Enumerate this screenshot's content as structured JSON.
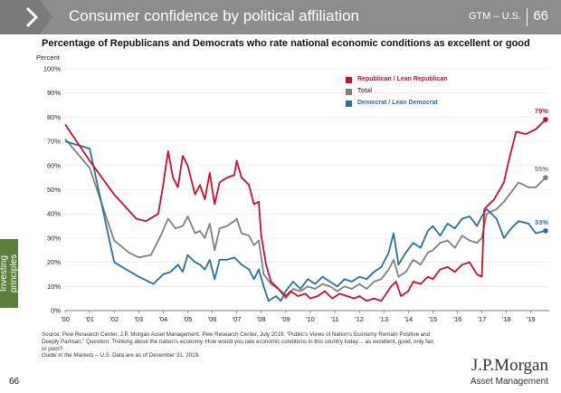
{
  "header": {
    "title": "Consumer confidence by political affiliation",
    "gtm": "GTM – U.S.",
    "page_number": "66",
    "chevron_icon": "chevron-icon"
  },
  "side_tab": {
    "label_line1": "Investing",
    "label_line2": "principles"
  },
  "colors": {
    "republican": "#c8102e",
    "total": "#808080",
    "democrat": "#2a6fa3",
    "header_bg": "#8c8c8c",
    "tab": "#5c7f3c"
  },
  "chart_data": {
    "type": "line",
    "title": "Percentage of Republicans and Democrats who rate national economic conditions as excellent or good",
    "ylabel": "Percent",
    "ylim": [
      0,
      100
    ],
    "xlim": [
      2000,
      2019.75
    ],
    "yticks": [
      "0%",
      "10%",
      "20%",
      "30%",
      "40%",
      "50%",
      "60%",
      "70%",
      "80%",
      "90%",
      "100%"
    ],
    "xticks": [
      "'00",
      "'01",
      "'02",
      "'03",
      "'04",
      "'05",
      "'06",
      "'07",
      "'08",
      "'09",
      "'10",
      "'11",
      "'12",
      "'13",
      "'14",
      "'15",
      "'16",
      "'17",
      "'18",
      "'19"
    ],
    "legend_position": "top-right",
    "series": [
      {
        "name": "Republican / Lean Republican",
        "color": "#c8102e",
        "end_label": "79%",
        "points": [
          [
            2000,
            77
          ],
          [
            2001,
            62
          ],
          [
            2002,
            48
          ],
          [
            2002.9,
            38
          ],
          [
            2003.3,
            37
          ],
          [
            2003.8,
            40
          ],
          [
            2004.0,
            52
          ],
          [
            2004.2,
            66
          ],
          [
            2004.4,
            55
          ],
          [
            2004.6,
            51
          ],
          [
            2004.8,
            64
          ],
          [
            2005.0,
            60
          ],
          [
            2005.3,
            48
          ],
          [
            2005.5,
            52
          ],
          [
            2005.7,
            46
          ],
          [
            2005.9,
            57
          ],
          [
            2006.1,
            44
          ],
          [
            2006.3,
            53
          ],
          [
            2006.6,
            55
          ],
          [
            2006.9,
            56
          ],
          [
            2007.0,
            62
          ],
          [
            2007.2,
            55
          ],
          [
            2007.5,
            52
          ],
          [
            2007.7,
            44
          ],
          [
            2007.9,
            45
          ],
          [
            2008.0,
            31
          ],
          [
            2008.2,
            19
          ],
          [
            2008.4,
            12
          ],
          [
            2008.6,
            10
          ],
          [
            2008.8,
            8
          ],
          [
            2009.0,
            6
          ],
          [
            2009.2,
            8
          ],
          [
            2009.5,
            6
          ],
          [
            2009.8,
            7
          ],
          [
            2010.0,
            5
          ],
          [
            2010.3,
            6
          ],
          [
            2010.6,
            8
          ],
          [
            2010.9,
            5
          ],
          [
            2011.2,
            7
          ],
          [
            2011.5,
            6
          ],
          [
            2011.8,
            5
          ],
          [
            2012.0,
            6
          ],
          [
            2012.3,
            4
          ],
          [
            2012.6,
            5
          ],
          [
            2012.9,
            4
          ],
          [
            2013.1,
            7
          ],
          [
            2013.3,
            10
          ],
          [
            2013.5,
            12
          ],
          [
            2013.7,
            6
          ],
          [
            2014.0,
            8
          ],
          [
            2014.2,
            12
          ],
          [
            2014.5,
            11
          ],
          [
            2014.8,
            14
          ],
          [
            2015.0,
            13
          ],
          [
            2015.3,
            17
          ],
          [
            2015.6,
            18
          ],
          [
            2015.9,
            16
          ],
          [
            2016.2,
            19
          ],
          [
            2016.5,
            20
          ],
          [
            2016.8,
            15
          ],
          [
            2017.0,
            14
          ],
          [
            2017.1,
            42
          ],
          [
            2017.5,
            46
          ],
          [
            2017.9,
            53
          ],
          [
            2018.1,
            62
          ],
          [
            2018.4,
            74
          ],
          [
            2018.8,
            73
          ],
          [
            2019.2,
            75
          ],
          [
            2019.6,
            79
          ]
        ]
      },
      {
        "name": "Total",
        "color": "#808080",
        "end_label": "55%",
        "points": [
          [
            2000,
            71
          ],
          [
            2001,
            59
          ],
          [
            2002,
            29
          ],
          [
            2002.6,
            24
          ],
          [
            2003.0,
            22
          ],
          [
            2003.5,
            23
          ],
          [
            2003.9,
            31
          ],
          [
            2004.2,
            38
          ],
          [
            2004.5,
            34
          ],
          [
            2004.8,
            35
          ],
          [
            2005.0,
            39
          ],
          [
            2005.3,
            32
          ],
          [
            2005.5,
            33
          ],
          [
            2005.7,
            30
          ],
          [
            2005.9,
            36
          ],
          [
            2006.1,
            25
          ],
          [
            2006.3,
            34
          ],
          [
            2006.6,
            35
          ],
          [
            2006.9,
            37
          ],
          [
            2007.0,
            38
          ],
          [
            2007.2,
            32
          ],
          [
            2007.5,
            31
          ],
          [
            2007.7,
            27
          ],
          [
            2007.9,
            29
          ],
          [
            2008.1,
            15
          ],
          [
            2008.4,
            11
          ],
          [
            2008.7,
            9
          ],
          [
            2009.0,
            5
          ],
          [
            2009.3,
            9
          ],
          [
            2009.6,
            8
          ],
          [
            2009.9,
            10
          ],
          [
            2010.2,
            9
          ],
          [
            2010.5,
            11
          ],
          [
            2010.8,
            10
          ],
          [
            2011.1,
            8
          ],
          [
            2011.4,
            10
          ],
          [
            2011.7,
            9
          ],
          [
            2012.0,
            11
          ],
          [
            2012.3,
            9
          ],
          [
            2012.6,
            12
          ],
          [
            2012.9,
            13
          ],
          [
            2013.2,
            17
          ],
          [
            2013.4,
            21
          ],
          [
            2013.6,
            14
          ],
          [
            2013.9,
            16
          ],
          [
            2014.2,
            21
          ],
          [
            2014.5,
            19
          ],
          [
            2014.8,
            24
          ],
          [
            2015.0,
            25
          ],
          [
            2015.3,
            28
          ],
          [
            2015.6,
            29
          ],
          [
            2015.9,
            26
          ],
          [
            2016.2,
            31
          ],
          [
            2016.5,
            29
          ],
          [
            2016.8,
            28
          ],
          [
            2017.0,
            30
          ],
          [
            2017.2,
            40
          ],
          [
            2017.6,
            42
          ],
          [
            2017.9,
            45
          ],
          [
            2018.2,
            49
          ],
          [
            2018.5,
            53
          ],
          [
            2018.9,
            51
          ],
          [
            2019.2,
            51
          ],
          [
            2019.6,
            55
          ]
        ]
      },
      {
        "name": "Democrat / Lean Democrat",
        "color": "#2a6fa3",
        "end_label": "33%",
        "points": [
          [
            2000,
            70
          ],
          [
            2001,
            67
          ],
          [
            2002,
            20
          ],
          [
            2002.5,
            17
          ],
          [
            2003.0,
            14
          ],
          [
            2003.6,
            11
          ],
          [
            2004.0,
            15
          ],
          [
            2004.3,
            16
          ],
          [
            2004.6,
            19
          ],
          [
            2004.8,
            16
          ],
          [
            2005.0,
            23
          ],
          [
            2005.3,
            20
          ],
          [
            2005.5,
            19
          ],
          [
            2005.7,
            17
          ],
          [
            2005.9,
            21
          ],
          [
            2006.1,
            13
          ],
          [
            2006.3,
            21
          ],
          [
            2006.6,
            21
          ],
          [
            2006.9,
            22
          ],
          [
            2007.0,
            21
          ],
          [
            2007.2,
            19
          ],
          [
            2007.5,
            17
          ],
          [
            2007.7,
            13
          ],
          [
            2007.9,
            17
          ],
          [
            2008.1,
            10
          ],
          [
            2008.3,
            4
          ],
          [
            2008.6,
            6
          ],
          [
            2008.8,
            4
          ],
          [
            2009.0,
            8
          ],
          [
            2009.3,
            12
          ],
          [
            2009.6,
            9
          ],
          [
            2009.9,
            13
          ],
          [
            2010.2,
            11
          ],
          [
            2010.5,
            14
          ],
          [
            2010.8,
            12
          ],
          [
            2011.1,
            10
          ],
          [
            2011.4,
            13
          ],
          [
            2011.7,
            12
          ],
          [
            2012.0,
            14
          ],
          [
            2012.3,
            13
          ],
          [
            2012.6,
            16
          ],
          [
            2012.9,
            18
          ],
          [
            2013.2,
            24
          ],
          [
            2013.4,
            32
          ],
          [
            2013.6,
            19
          ],
          [
            2013.9,
            24
          ],
          [
            2014.2,
            28
          ],
          [
            2014.5,
            26
          ],
          [
            2014.8,
            33
          ],
          [
            2015.0,
            35
          ],
          [
            2015.3,
            31
          ],
          [
            2015.6,
            36
          ],
          [
            2015.9,
            34
          ],
          [
            2016.2,
            38
          ],
          [
            2016.5,
            39
          ],
          [
            2016.8,
            35
          ],
          [
            2017.0,
            39
          ],
          [
            2017.2,
            42
          ],
          [
            2017.6,
            38
          ],
          [
            2017.9,
            30
          ],
          [
            2018.2,
            34
          ],
          [
            2018.5,
            37
          ],
          [
            2018.9,
            36
          ],
          [
            2019.2,
            32
          ],
          [
            2019.6,
            33
          ]
        ]
      }
    ]
  },
  "source": {
    "text": "Source: Pew Research Center, J.P. Morgan Asset Management. Pew Research Center, July 2019, “Public’s Views of Nation’s Economy Remain Positive and Deeply Partisan.” Question: Thinking about the nation’s economy. How would you rate economic conditions in this country today… as excellent, good, only fair, or poor?",
    "note": "Guide to the Markets – U.S.",
    "note_tail": " Data are as of December 31, 2019."
  },
  "footer": {
    "page_number": "66"
  },
  "logo": {
    "brand": "J.P.Morgan",
    "sub": "Asset Management"
  }
}
